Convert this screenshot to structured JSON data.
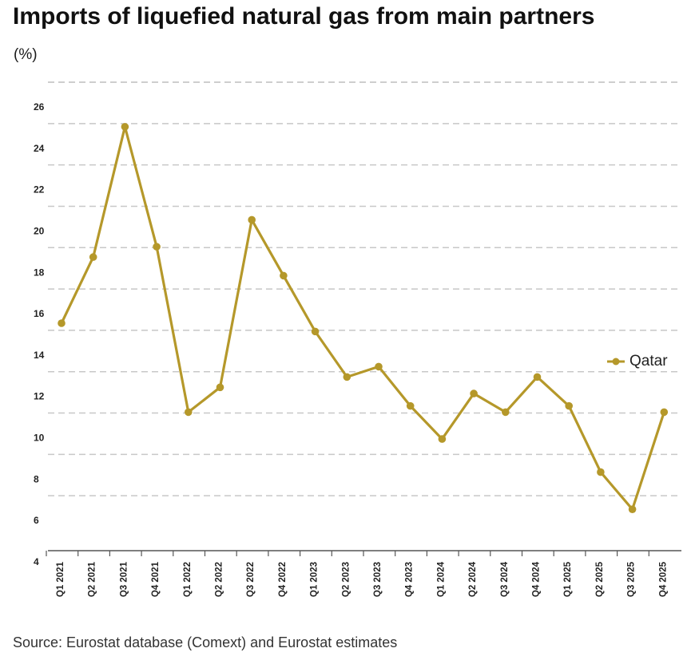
{
  "chart_data": {
    "type": "line",
    "title": "Imports of liquefied natural gas from main partners",
    "unit_label": "(%)",
    "xlabel": "",
    "ylabel": "",
    "categories": [
      "Q1 2021",
      "Q2 2021",
      "Q3 2021",
      "Q4 2021",
      "Q1 2022",
      "Q2 2022",
      "Q3 2022",
      "Q4 2022",
      "Q1 2023",
      "Q2 2023",
      "Q3 2023",
      "Q4 2023",
      "Q1 2024",
      "Q2 2024",
      "Q3 2024",
      "Q4 2024",
      "Q1 2025",
      "Q2 2025",
      "Q3 2025",
      "Q4 2025"
    ],
    "series": [
      {
        "name": "Qatar",
        "color": "#b5982a",
        "values": [
          15.0,
          18.2,
          24.5,
          18.7,
          10.7,
          11.9,
          20.0,
          17.3,
          14.6,
          12.4,
          12.9,
          11.0,
          9.4,
          11.6,
          10.7,
          12.4,
          11.0,
          7.8,
          6.0,
          10.7
        ]
      }
    ],
    "ylim": [
      4,
      26
    ],
    "yticks": [
      4,
      6,
      8,
      10,
      12,
      14,
      16,
      18,
      20,
      22,
      24,
      26
    ],
    "grid": true,
    "legend_position": "right"
  },
  "source": "Source: Eurostat database (Comext) and Eurostat estimates",
  "colors": {
    "line": "#b5982a",
    "grid": "#c8c8c8",
    "axis": "#555555"
  }
}
